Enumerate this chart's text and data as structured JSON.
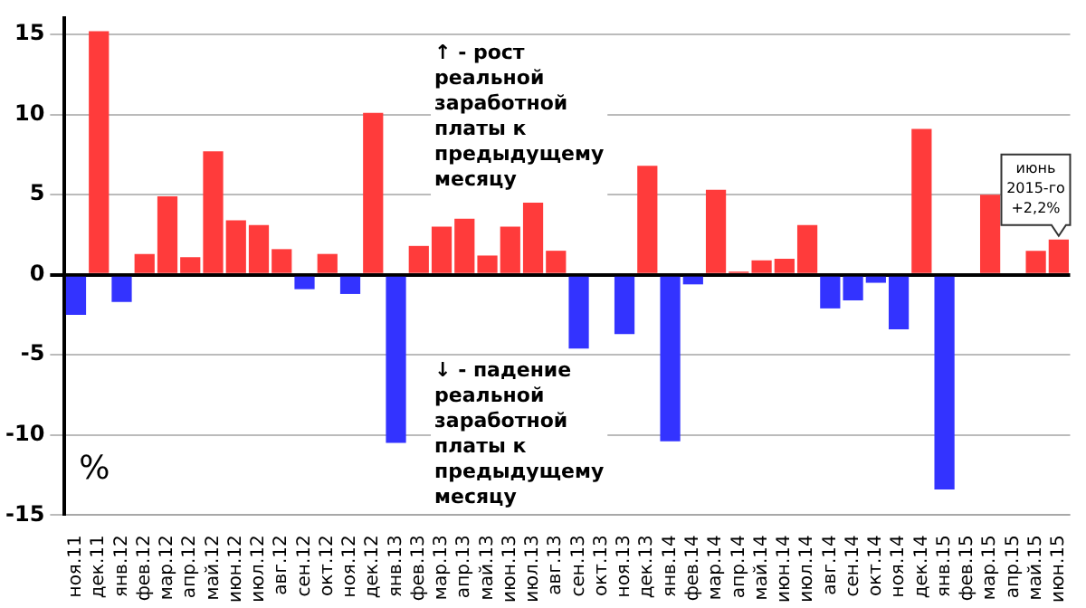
{
  "chart_data": {
    "type": "bar",
    "ylabel": "%",
    "categories": [
      "ноя.11",
      "дек.11",
      "янв.12",
      "фев.12",
      "мар.12",
      "апр.12",
      "май.12",
      "июн.12",
      "июл.12",
      "авг.12",
      "сен.12",
      "окт.12",
      "ноя.12",
      "дек.12",
      "янв.13",
      "фев.13",
      "мар.13",
      "апр.13",
      "май.13",
      "июн.13",
      "июл.13",
      "авг.13",
      "сен.13",
      "окт.13",
      "ноя.13",
      "дек.13",
      "янв.14",
      "фев.14",
      "мар.14",
      "апр.14",
      "май.14",
      "июн.14",
      "июл.14",
      "авг.14",
      "сен.14",
      "окт.14",
      "ноя.14",
      "дек.14",
      "янв.15",
      "фев.15",
      "мар.15",
      "апр.15",
      "май.15",
      "июн.15"
    ],
    "values": [
      -2.5,
      15.2,
      -1.7,
      1.3,
      4.9,
      1.1,
      7.7,
      3.4,
      3.1,
      1.6,
      -0.9,
      1.3,
      -1.2,
      10.1,
      -10.5,
      1.8,
      3.0,
      3.5,
      1.2,
      3.0,
      4.5,
      1.5,
      -4.6,
      0,
      -3.7,
      6.8,
      -10.4,
      -0.6,
      5.3,
      0.2,
      0.9,
      1.0,
      3.1,
      -2.1,
      -1.6,
      -0.5,
      -3.4,
      9.1,
      -13.4,
      0,
      5.0,
      0,
      1.5,
      2.2
    ],
    "colors": [
      "#3333ff",
      "#ff3b3b",
      "#3333ff",
      "#ff3b3b",
      "#ff3b3b",
      "#ff3b3b",
      "#ff3b3b",
      "#ff3b3b",
      "#ff3b3b",
      "#ff3b3b",
      "#3333ff",
      "#ff3b3b",
      "#3333ff",
      "#ff3b3b",
      "#3333ff",
      "#ff3b3b",
      "#ff3b3b",
      "#ff3b3b",
      "#ff3b3b",
      "#ff3b3b",
      "#ff3b3b",
      "#ff3b3b",
      "#3333ff",
      "#ff3b3b",
      "#3333ff",
      "#ff3b3b",
      "#3333ff",
      "#3333ff",
      "#ff3b3b",
      "#ff3b3b",
      "#ff3b3b",
      "#ff3b3b",
      "#ff3b3b",
      "#3333ff",
      "#3333ff",
      "#3333ff",
      "#3333ff",
      "#ff3b3b",
      "#3333ff",
      "#ff3b3b",
      "#ff3b3b",
      "#ff3b3b",
      "#ff3b3b",
      "#ff3b3b"
    ],
    "ylim": [
      -15,
      16
    ],
    "yticks": [
      -15,
      -10,
      -5,
      0,
      5,
      10,
      15
    ],
    "grid": "y",
    "legend": false,
    "annotations": [
      "↑ - рост реальной заработной платы к предыдущему месяцу",
      "↓ - падение реальной заработной платы к предыдущему месяцу",
      {
        "text": "июнь 2015-го +2,2%",
        "x": "июн.15",
        "y": 2.2
      }
    ]
  }
}
